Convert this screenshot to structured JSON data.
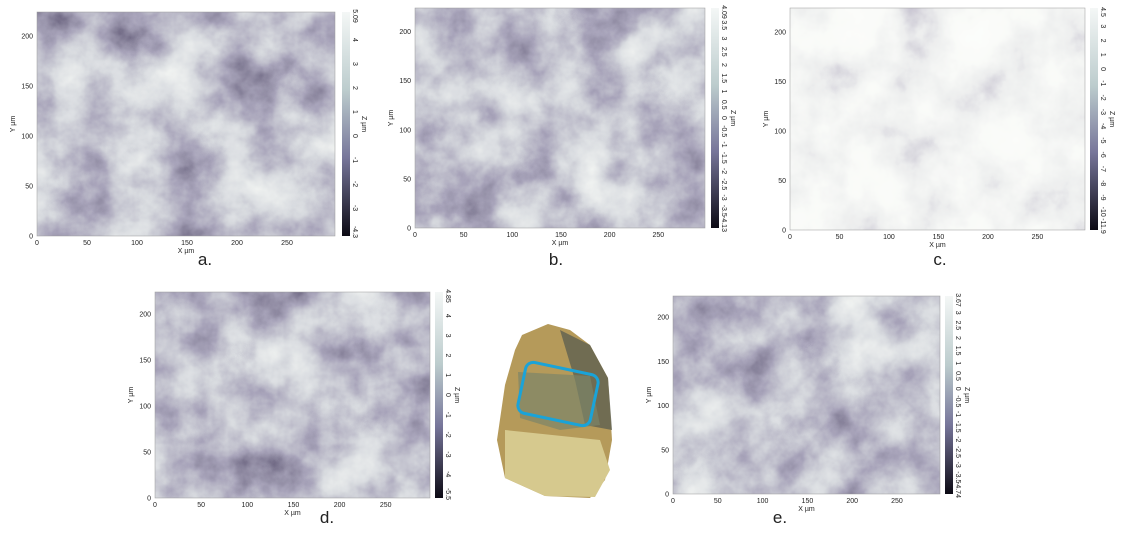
{
  "panels": [
    {
      "label": "a.",
      "x_label": "X µm",
      "y_label": "Y µm",
      "z_label": "Z µm",
      "x_ticks": [
        0,
        50,
        100,
        150,
        200,
        250
      ],
      "y_ticks": [
        0,
        50,
        100,
        150,
        200
      ],
      "z_ticks": [
        5.09,
        4,
        3,
        2,
        1,
        0,
        -1,
        -2,
        -3,
        -4.3
      ]
    },
    {
      "label": "b.",
      "x_label": "X µm",
      "y_label": "Y µm",
      "z_label": "Z µm",
      "x_ticks": [
        0,
        50,
        100,
        150,
        200,
        250
      ],
      "y_ticks": [
        0,
        50,
        100,
        150,
        200
      ],
      "z_ticks": [
        4.09,
        3.5,
        3,
        2.5,
        2,
        1.5,
        1,
        0.5,
        0,
        -0.5,
        -1,
        -1.5,
        -2,
        -2.5,
        -3,
        -3.5,
        -4.13
      ]
    },
    {
      "label": "c.",
      "x_label": "X µm",
      "y_label": "Y µm",
      "z_label": "Z µm",
      "x_ticks": [
        0,
        50,
        100,
        150,
        200,
        250
      ],
      "y_ticks": [
        0,
        50,
        100,
        150,
        200
      ],
      "z_ticks": [
        4.5,
        3,
        2,
        1,
        0,
        -1,
        -2,
        -3,
        -4,
        -5,
        -6,
        -7,
        -8,
        -9,
        -10,
        -11.9
      ]
    },
    {
      "label": "d.",
      "x_label": "X µm",
      "y_label": "Y µm",
      "z_label": "Z µm",
      "x_ticks": [
        0,
        50,
        100,
        150,
        200,
        250
      ],
      "y_ticks": [
        0,
        50,
        100,
        150,
        200
      ],
      "z_ticks": [
        4.85,
        4,
        3,
        2,
        1,
        0,
        -1,
        -2,
        -3,
        -4,
        -5.5
      ]
    },
    {
      "label": "e.",
      "x_label": "X µm",
      "y_label": "Y µm",
      "z_label": "Z µm",
      "x_ticks": [
        0,
        50,
        100,
        150,
        200,
        250
      ],
      "y_ticks": [
        0,
        50,
        100,
        150,
        200
      ],
      "z_ticks": [
        3.67,
        3,
        2.5,
        2,
        1.5,
        1,
        0.5,
        0,
        -0.5,
        -1,
        -1.5,
        -2,
        -2.5,
        -3,
        -3.5,
        -4.74
      ]
    }
  ]
}
